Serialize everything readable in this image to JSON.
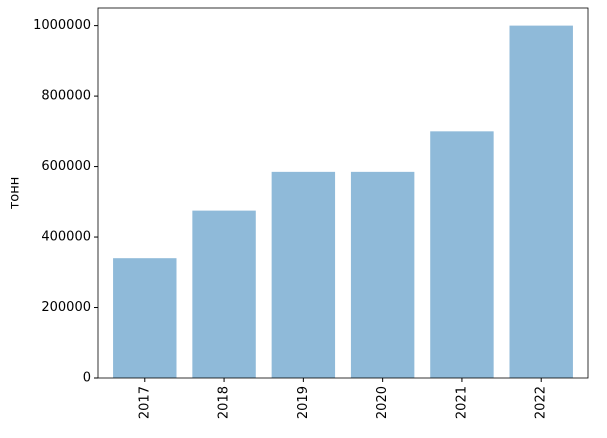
{
  "chart_data": {
    "type": "bar",
    "y_label": "тонн",
    "categories": [
      "2017",
      "2018",
      "2019",
      "2020",
      "2021",
      "2022"
    ],
    "values": [
      340000,
      475000,
      585000,
      585000,
      700000,
      1000000
    ],
    "color": "#8fbad9",
    "ylim": [
      0,
      1050000
    ],
    "yticks": [
      0,
      200000,
      400000,
      600000,
      800000,
      1000000
    ],
    "grid": false
  }
}
